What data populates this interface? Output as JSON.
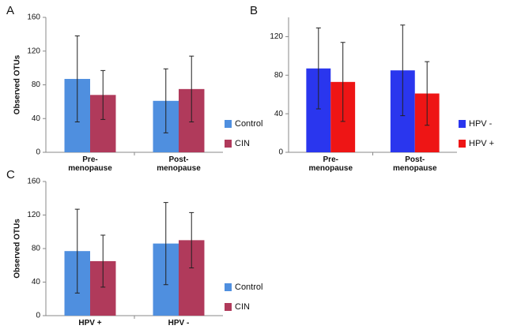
{
  "chart_data": [
    {
      "type": "bar",
      "panel": "A",
      "ylabel": "Observed OTUs",
      "categories": [
        "Pre-\nmenopause",
        "Post-\nmenopause"
      ],
      "series": [
        {
          "name": "Control",
          "color": "#4f8fdf",
          "values": [
            87,
            61
          ],
          "errors": [
            51,
            38
          ]
        },
        {
          "name": "CIN",
          "color": "#b03a5b",
          "values": [
            68,
            75
          ],
          "errors": [
            29,
            39
          ]
        }
      ],
      "ylim": [
        0,
        160
      ],
      "yticks": [
        0,
        40,
        80,
        120,
        160
      ],
      "legend": "right"
    },
    {
      "type": "bar",
      "panel": "B",
      "categories": [
        "Pre-\nmenopause",
        "Post-\nmenopause"
      ],
      "series": [
        {
          "name": "HPV -",
          "color": "#2a36ee",
          "values": [
            87,
            85
          ],
          "errors": [
            42,
            47
          ]
        },
        {
          "name": "HPV +",
          "color": "#ee1515",
          "values": [
            73,
            61
          ],
          "errors": [
            41,
            33
          ]
        }
      ],
      "ylim": [
        0,
        140
      ],
      "yticks": [
        0,
        40,
        80,
        120
      ],
      "legend": "right"
    },
    {
      "type": "bar",
      "panel": "C",
      "ylabel": "Observed OTUs",
      "categories": [
        "HPV +",
        "HPV -"
      ],
      "series": [
        {
          "name": "Control",
          "color": "#4f8fdf",
          "values": [
            77,
            86
          ],
          "errors": [
            50,
            49
          ]
        },
        {
          "name": "CIN",
          "color": "#b03a5b",
          "values": [
            65,
            90
          ],
          "errors": [
            31,
            33
          ]
        }
      ],
      "ylim": [
        0,
        160
      ],
      "yticks": [
        0,
        40,
        80,
        120,
        160
      ],
      "legend": "right"
    }
  ]
}
